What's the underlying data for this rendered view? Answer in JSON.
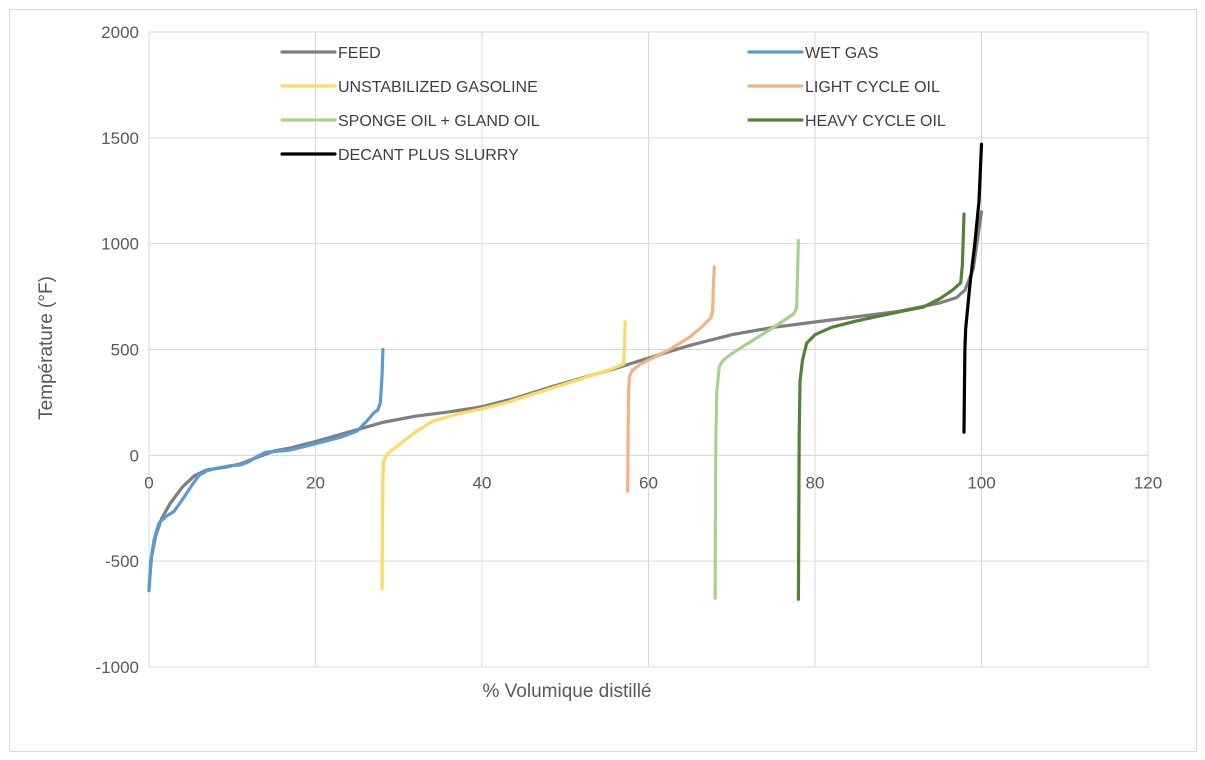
{
  "chart_data": {
    "type": "line",
    "title": "",
    "xlabel": "% Volumique distillé",
    "ylabel": "Température (°F)",
    "xlim": [
      0,
      120
    ],
    "ylim": [
      -1000,
      2000
    ],
    "x_ticks": [
      0,
      20,
      40,
      60,
      80,
      100,
      120
    ],
    "y_ticks": [
      -1000,
      -500,
      0,
      500,
      1000,
      1500,
      2000
    ],
    "x_tick_labels": [
      "0",
      "20",
      "40",
      "60",
      "80",
      "100",
      "120"
    ],
    "y_tick_labels": [
      "-1000",
      "-500",
      "0",
      "500",
      "1000",
      "1500",
      "2000"
    ],
    "grid": true,
    "legend_position": "top",
    "series": [
      {
        "name": "FEED",
        "color": "#7f7f7f",
        "points": [
          [
            0,
            -630
          ],
          [
            0.3,
            -480
          ],
          [
            0.8,
            -380
          ],
          [
            1.5,
            -300
          ],
          [
            2.5,
            -230
          ],
          [
            4,
            -150
          ],
          [
            5.5,
            -95
          ],
          [
            7,
            -68
          ],
          [
            9,
            -58
          ],
          [
            11,
            -40
          ],
          [
            13,
            -10
          ],
          [
            15,
            20
          ],
          [
            17,
            35
          ],
          [
            20,
            65
          ],
          [
            24,
            110
          ],
          [
            28,
            155
          ],
          [
            32,
            185
          ],
          [
            36,
            205
          ],
          [
            40,
            230
          ],
          [
            44,
            270
          ],
          [
            48,
            320
          ],
          [
            52,
            365
          ],
          [
            56,
            410
          ],
          [
            60,
            460
          ],
          [
            65,
            520
          ],
          [
            70,
            570
          ],
          [
            75,
            605
          ],
          [
            80,
            630
          ],
          [
            85,
            655
          ],
          [
            90,
            680
          ],
          [
            95,
            720
          ],
          [
            97,
            745
          ],
          [
            98,
            780
          ],
          [
            99,
            880
          ],
          [
            100,
            1150
          ]
        ]
      },
      {
        "name": "WET GAS",
        "color": "#5b9bd5",
        "points": [
          [
            0,
            -640
          ],
          [
            0.2,
            -500
          ],
          [
            0.6,
            -400
          ],
          [
            1.2,
            -320
          ],
          [
            2,
            -290
          ],
          [
            3,
            -265
          ],
          [
            4,
            -210
          ],
          [
            5,
            -150
          ],
          [
            6,
            -95
          ],
          [
            7,
            -72
          ],
          [
            8,
            -62
          ],
          [
            10,
            -48
          ],
          [
            11,
            -45
          ],
          [
            12,
            -30
          ],
          [
            13,
            -5
          ],
          [
            14,
            15
          ],
          [
            15,
            18
          ],
          [
            17,
            25
          ],
          [
            19,
            45
          ],
          [
            21,
            65
          ],
          [
            23,
            85
          ],
          [
            24,
            100
          ],
          [
            25,
            115
          ],
          [
            26,
            155
          ],
          [
            27,
            200
          ],
          [
            27.5,
            215
          ],
          [
            27.8,
            250
          ],
          [
            28,
            380
          ],
          [
            28.1,
            500
          ]
        ]
      },
      {
        "name": "UNSTABILIZED GASOLINE",
        "color": "#ffd966",
        "points": [
          [
            28,
            -630
          ],
          [
            28.05,
            -300
          ],
          [
            28.1,
            -100
          ],
          [
            28.2,
            -25
          ],
          [
            28.6,
            5
          ],
          [
            30,
            50
          ],
          [
            32,
            110
          ],
          [
            34,
            160
          ],
          [
            37,
            195
          ],
          [
            40,
            220
          ],
          [
            43,
            250
          ],
          [
            47,
            300
          ],
          [
            51,
            350
          ],
          [
            55,
            400
          ],
          [
            57,
            430
          ],
          [
            57.1,
            500
          ],
          [
            57.2,
            630
          ]
        ]
      },
      {
        "name": "LIGHT CYCLE OIL",
        "color": "#f4b183",
        "points": [
          [
            57.5,
            -170
          ],
          [
            57.55,
            100
          ],
          [
            57.6,
            300
          ],
          [
            57.7,
            370
          ],
          [
            58,
            400
          ],
          [
            59,
            430
          ],
          [
            61,
            470
          ],
          [
            63,
            510
          ],
          [
            65,
            560
          ],
          [
            66.5,
            610
          ],
          [
            67.5,
            650
          ],
          [
            67.7,
            680
          ],
          [
            67.8,
            800
          ],
          [
            67.9,
            890
          ]
        ]
      },
      {
        "name": "SPONGE OIL + GLAND OIL",
        "color": "#a9d18e",
        "points": [
          [
            68,
            -675
          ],
          [
            68.05,
            -200
          ],
          [
            68.1,
            100
          ],
          [
            68.2,
            300
          ],
          [
            68.5,
            420
          ],
          [
            69,
            450
          ],
          [
            70,
            480
          ],
          [
            72,
            530
          ],
          [
            74,
            580
          ],
          [
            76,
            630
          ],
          [
            77.5,
            670
          ],
          [
            77.8,
            700
          ],
          [
            77.9,
            850
          ],
          [
            78,
            1015
          ]
        ]
      },
      {
        "name": "HEAVY CYCLE OIL",
        "color": "#548235",
        "points": [
          [
            78,
            -680
          ],
          [
            78.05,
            -300
          ],
          [
            78.1,
            100
          ],
          [
            78.2,
            350
          ],
          [
            78.5,
            450
          ],
          [
            79,
            530
          ],
          [
            80,
            570
          ],
          [
            82,
            605
          ],
          [
            85,
            635
          ],
          [
            88,
            660
          ],
          [
            91,
            685
          ],
          [
            93,
            700
          ],
          [
            95,
            740
          ],
          [
            96.5,
            780
          ],
          [
            97.5,
            815
          ],
          [
            97.7,
            900
          ],
          [
            97.9,
            1140
          ]
        ]
      },
      {
        "name": "DECANT PLUS SLURRY",
        "color": "#000000",
        "points": [
          [
            97.9,
            110
          ],
          [
            97.95,
            300
          ],
          [
            98,
            500
          ],
          [
            98.1,
            600
          ],
          [
            98.6,
            800
          ],
          [
            99.2,
            1000
          ],
          [
            99.7,
            1200
          ],
          [
            100,
            1470
          ]
        ]
      }
    ]
  }
}
